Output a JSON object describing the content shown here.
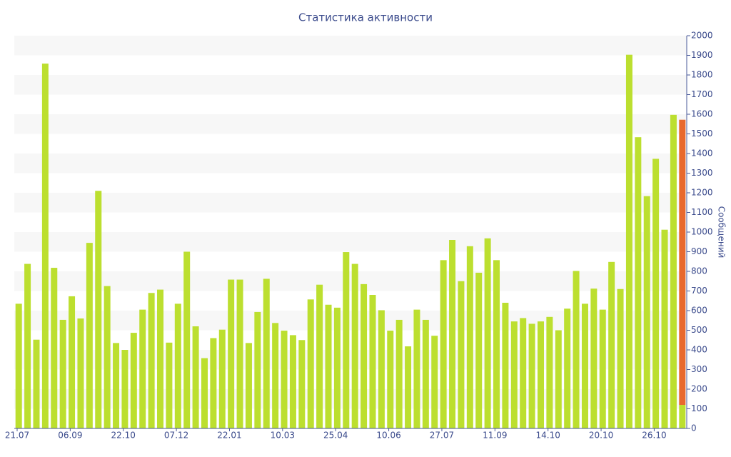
{
  "chart_data": {
    "type": "bar",
    "title": "Статистика активности",
    "y_label": "Сообщений",
    "categories": [
      "21.07",
      null,
      null,
      null,
      null,
      null,
      "06.09",
      null,
      null,
      null,
      null,
      null,
      "22.10",
      null,
      null,
      null,
      null,
      null,
      "07.12",
      null,
      null,
      null,
      null,
      null,
      "22.01",
      null,
      null,
      null,
      null,
      null,
      "10.03",
      null,
      null,
      null,
      null,
      null,
      "25.04",
      null,
      null,
      null,
      null,
      null,
      "10.06",
      null,
      null,
      null,
      null,
      null,
      "27.07",
      null,
      null,
      null,
      null,
      null,
      "11.09",
      null,
      null,
      null,
      null,
      null,
      "14.10",
      null,
      null,
      null,
      null,
      null,
      "20.10",
      null,
      null,
      null,
      null,
      null,
      "26.10",
      null,
      null,
      null
    ],
    "series": [
      {
        "color": "#bcdf2f",
        "values": [
          635,
          838,
          452,
          1858,
          818,
          553,
          673,
          560,
          945,
          1210,
          725,
          435,
          400,
          487,
          605,
          690,
          707,
          437,
          635,
          900,
          520,
          358,
          460,
          503,
          758,
          758,
          435,
          593,
          762,
          537,
          498,
          475,
          450,
          657,
          732,
          630,
          615,
          898,
          838,
          735,
          680,
          602,
          498,
          553,
          418,
          605,
          553,
          472,
          857,
          960,
          750,
          928,
          793,
          968,
          857,
          640,
          545,
          562,
          533,
          545,
          568,
          500,
          610,
          802,
          635,
          712,
          605,
          848,
          710,
          1903,
          1483,
          1183,
          1373,
          1012,
          1597,
          120
        ]
      },
      {
        "color": "#e8692d",
        "values": [
          null,
          null,
          null,
          null,
          null,
          null,
          null,
          null,
          null,
          null,
          null,
          null,
          null,
          null,
          null,
          null,
          null,
          null,
          null,
          null,
          null,
          null,
          null,
          null,
          null,
          null,
          null,
          null,
          null,
          null,
          null,
          null,
          null,
          null,
          null,
          null,
          null,
          null,
          null,
          null,
          null,
          null,
          null,
          null,
          null,
          null,
          null,
          null,
          null,
          null,
          null,
          null,
          null,
          null,
          null,
          null,
          null,
          null,
          null,
          null,
          null,
          null,
          null,
          null,
          null,
          null,
          null,
          null,
          null,
          null,
          null,
          null,
          null,
          null,
          null,
          1452
        ]
      }
    ],
    "ylim": [
      0,
      2000
    ],
    "yticks": [
      0,
      100,
      200,
      300,
      400,
      500,
      600,
      700,
      800,
      900,
      1000,
      1100,
      1200,
      1300,
      1400,
      1500,
      1600,
      1700,
      1800,
      1900,
      2000
    ],
    "grid": "bands",
    "y_axis_side": "right"
  }
}
